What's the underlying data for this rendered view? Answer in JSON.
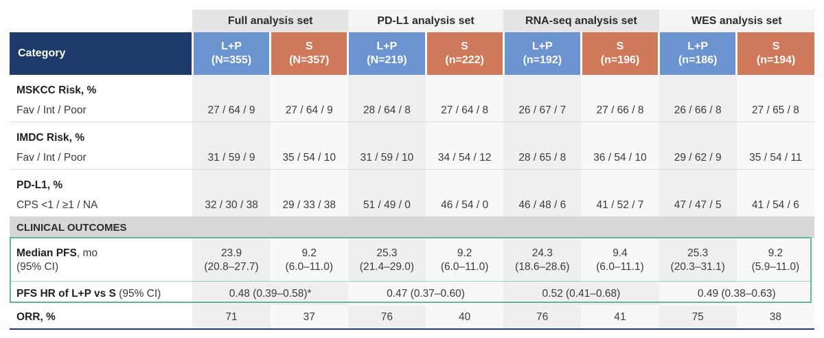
{
  "groups": {
    "full": "Full analysis set",
    "pdl1": "PD-L1 analysis set",
    "rna": "RNA-seq analysis set",
    "wes": "WES analysis set"
  },
  "header": {
    "category": "Category",
    "arms": [
      {
        "name": "L+P",
        "n": "(N=355)"
      },
      {
        "name": "S",
        "n": "(N=357)"
      },
      {
        "name": "L+P",
        "n": "(N=219)"
      },
      {
        "name": "S",
        "n": "(n=222)"
      },
      {
        "name": "L+P",
        "n": "(n=192)"
      },
      {
        "name": "S",
        "n": "(n=196)"
      },
      {
        "name": "L+P",
        "n": "(n=186)"
      },
      {
        "name": "S",
        "n": "(n=194)"
      }
    ]
  },
  "rows": {
    "mskcc_title": "MSKCC Risk, %",
    "mskcc_label": "Fav / Int / Poor",
    "mskcc": [
      "27 / 64 / 9",
      "27 / 64 / 9",
      "28 / 64 / 8",
      "27 / 64 / 8",
      "26 / 67 / 7",
      "27 / 66 / 8",
      "26 / 66 / 8",
      "27 / 65 / 8"
    ],
    "imdc_title": "IMDC Risk, %",
    "imdc_label": "Fav / Int / Poor",
    "imdc": [
      "31 / 59 / 9",
      "35 / 54 / 10",
      "31 / 59 / 10",
      "34 / 54 / 12",
      "28 / 65 / 8",
      "36 / 54 / 10",
      "29 / 62 / 9",
      "35 / 54 / 11"
    ],
    "pdl1_title": "PD-L1, %",
    "pdl1_label": "CPS <1 / ≥1 / NA",
    "pdl1": [
      "32 / 30 / 38",
      "29 / 33 / 38",
      "51 / 49 / 0",
      "46 / 54 / 0",
      "46 / 48 / 6",
      "41 / 52 / 7",
      "47 / 47 / 5",
      "41 / 54 / 6"
    ],
    "clinical": "CLINICAL OUTCOMES",
    "pfs_label_bold": "Median PFS",
    "pfs_label_rest": ", mo",
    "pfs_label_ci": "(95% CI)",
    "pfs_median": [
      "23.9",
      "9.2",
      "25.3",
      "9.2",
      "24.3",
      "9.4",
      "25.3",
      "9.2"
    ],
    "pfs_ci": [
      "(20.8–27.7)",
      "(6.0–11.0)",
      "(21.4–29.0)",
      "(6.0–11.0)",
      "(18.6–28.6)",
      "(6.0–11.1)",
      "(20.3–31.1)",
      "(5.9–11.0)"
    ],
    "hr_label_bold": "PFS HR of L+P vs S",
    "hr_label_rest": " (95% CI)",
    "hr": [
      "0.48 (0.39–0.58)*",
      "0.47 (0.37–0.60)",
      "0.52 (0.41–0.68)",
      "0.49 (0.38–0.63)"
    ],
    "orr_label": "ORR, %",
    "orr": [
      "71",
      "37",
      "76",
      "40",
      "76",
      "41",
      "75",
      "38"
    ]
  },
  "colors": {
    "navy": "#1d3a6b",
    "lp_blue": "#6a93cf",
    "s_orange": "#d0785a",
    "highlight_green": "#5fb89a"
  }
}
